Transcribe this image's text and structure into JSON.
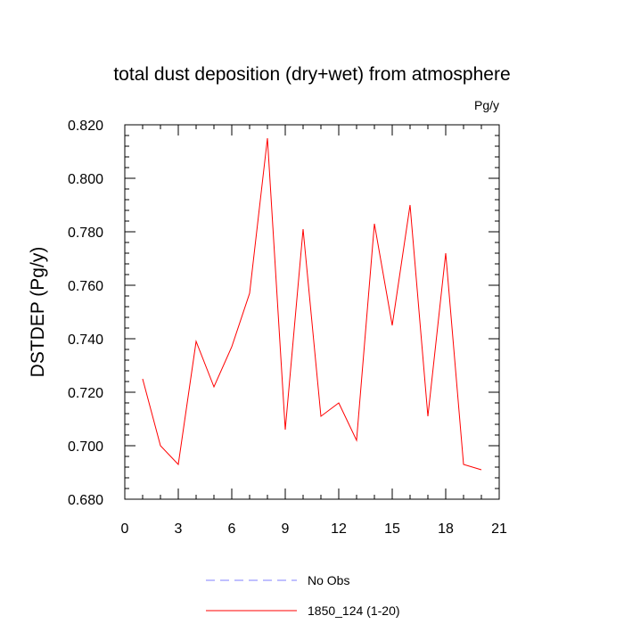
{
  "chart_data": {
    "type": "line",
    "title": "total dust deposition (dry+wet) from atmosphere",
    "units": "Pg/y",
    "xlabel": "",
    "ylabel": "DSTDEP  (Pg/y)",
    "xlim": [
      0,
      21
    ],
    "ylim": [
      0.68,
      0.82
    ],
    "x_ticks": [
      "0",
      "3",
      "6",
      "9",
      "12",
      "15",
      "18",
      "21"
    ],
    "y_ticks": [
      "0.680",
      "0.700",
      "0.720",
      "0.740",
      "0.760",
      "0.780",
      "0.800",
      "0.820"
    ],
    "grid": false,
    "legend_position": "bottom",
    "series": [
      {
        "name": "1850_124 (1-20)",
        "color": "#ff0000",
        "style": "solid",
        "x": [
          1,
          2,
          3,
          4,
          5,
          6,
          7,
          8,
          9,
          10,
          11,
          12,
          13,
          14,
          15,
          16,
          17,
          18,
          19,
          20
        ],
        "y": [
          0.725,
          0.7,
          0.693,
          0.739,
          0.722,
          0.737,
          0.757,
          0.815,
          0.706,
          0.781,
          0.711,
          0.716,
          0.702,
          0.783,
          0.745,
          0.79,
          0.711,
          0.772,
          0.693,
          0.691
        ]
      }
    ],
    "legend": [
      {
        "label": "No Obs",
        "color": "#8080ff",
        "style": "dashed"
      },
      {
        "label": "1850_124 (1-20)",
        "color": "#ff0000",
        "style": "solid"
      }
    ]
  }
}
